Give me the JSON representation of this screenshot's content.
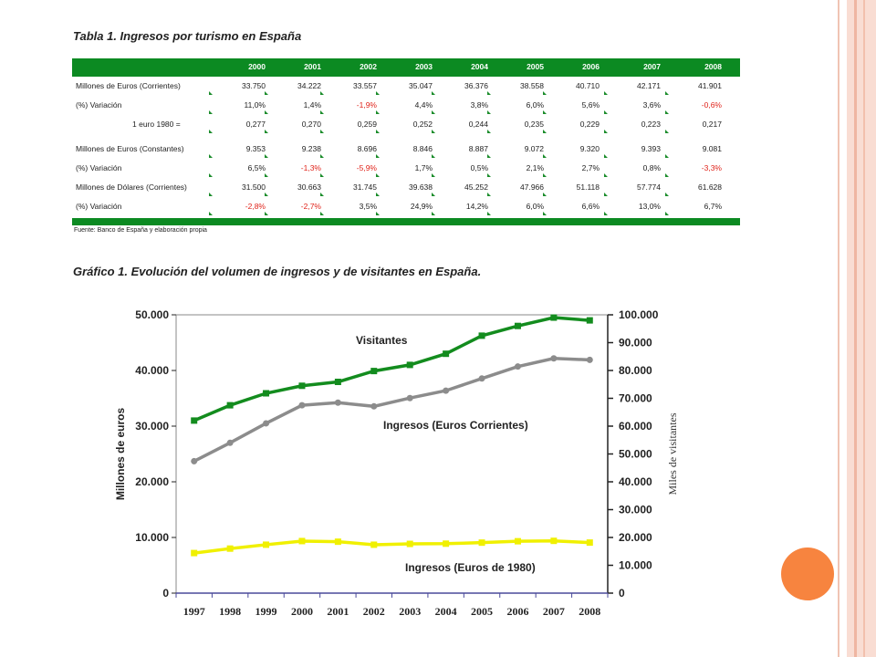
{
  "table": {
    "title": "Tabla 1. Ingresos por turismo en España",
    "years": [
      "2000",
      "2001",
      "2002",
      "2003",
      "2004",
      "2005",
      "2006",
      "2007",
      "2008"
    ],
    "rows": [
      {
        "label": "Millones de Euros (Corrientes)",
        "values": [
          "33.750",
          "34.222",
          "33.557",
          "35.047",
          "36.376",
          "38.558",
          "40.710",
          "42.171",
          "41.901"
        ],
        "neg": [
          false,
          false,
          false,
          false,
          false,
          false,
          false,
          false,
          false
        ]
      },
      {
        "label": "(%) Variación",
        "values": [
          "11,0%",
          "1,4%",
          "-1,9%",
          "4,4%",
          "3,8%",
          "6,0%",
          "5,6%",
          "3,6%",
          "-0,6%"
        ],
        "neg": [
          false,
          false,
          true,
          false,
          false,
          false,
          false,
          false,
          true
        ]
      },
      {
        "label": "1 euro 1980 =",
        "indent": true,
        "values": [
          "0,277",
          "0,270",
          "0,259",
          "0,252",
          "0,244",
          "0,235",
          "0,229",
          "0,223",
          "0,217"
        ],
        "neg": [
          false,
          false,
          false,
          false,
          false,
          false,
          false,
          false,
          false
        ]
      },
      {
        "gap": true
      },
      {
        "label": "Millones de Euros (Constantes)",
        "values": [
          "9.353",
          "9.238",
          "8.696",
          "8.846",
          "8.887",
          "9.072",
          "9.320",
          "9.393",
          "9.081"
        ],
        "neg": [
          false,
          false,
          false,
          false,
          false,
          false,
          false,
          false,
          false
        ]
      },
      {
        "label": "(%) Variación",
        "values": [
          "6,5%",
          "-1,3%",
          "-5,9%",
          "1,7%",
          "0,5%",
          "2,1%",
          "2,7%",
          "0,8%",
          "-3,3%"
        ],
        "neg": [
          false,
          true,
          true,
          false,
          false,
          false,
          false,
          false,
          true
        ]
      },
      {
        "label": "Millones de Dólares (Corrientes)",
        "values": [
          "31.500",
          "30.663",
          "31.745",
          "39.638",
          "45.252",
          "47.966",
          "51.118",
          "57.774",
          "61.628"
        ],
        "neg": [
          false,
          false,
          false,
          false,
          false,
          false,
          false,
          false,
          false
        ]
      },
      {
        "label": "(%) Variación",
        "values": [
          "-2,8%",
          "-2,7%",
          "3,5%",
          "24,9%",
          "14,2%",
          "6,0%",
          "6,6%",
          "13,0%",
          "6,7%"
        ],
        "neg": [
          true,
          true,
          false,
          false,
          false,
          false,
          false,
          false,
          false
        ]
      }
    ],
    "source": "Fuente: Banco de España y elaboración propia"
  },
  "chart_title": "Gráfico 1. Evolución del volumen de ingresos y de visitantes en España.",
  "chart_data": {
    "type": "line",
    "x": [
      "1997",
      "1998",
      "1999",
      "2000",
      "2001",
      "2002",
      "2003",
      "2004",
      "2005",
      "2006",
      "2007",
      "2008"
    ],
    "ylabel": "Millones de euros",
    "y2label": "Miles de visitantes",
    "ylim": [
      0,
      50000
    ],
    "y2lim": [
      0,
      100000
    ],
    "yticks": [
      "0",
      "10.000",
      "20.000",
      "30.000",
      "40.000",
      "50.000"
    ],
    "y2ticks": [
      "0",
      "10.000",
      "20.000",
      "30.000",
      "40.000",
      "50.000",
      "60.000",
      "70.000",
      "80.000",
      "90.000",
      "100.000"
    ],
    "grid": false,
    "series": [
      {
        "name": "Visitantes",
        "axis": "right",
        "color": "#138c1e",
        "marker": "square",
        "values": [
          62000,
          67500,
          71800,
          74500,
          75900,
          79800,
          82000,
          86000,
          92500,
          96000,
          99000,
          98000
        ]
      },
      {
        "name": "Ingresos (Euros Corrientes)",
        "axis": "left",
        "color": "#8c8c8c",
        "marker": "circle",
        "values": [
          23700,
          27000,
          30500,
          33750,
          34222,
          33557,
          35047,
          36376,
          38558,
          40710,
          42171,
          41901
        ]
      },
      {
        "name": "Ingresos (Euros de 1980)",
        "axis": "left",
        "color": "#f0f000",
        "marker": "square",
        "values": [
          7200,
          8000,
          8700,
          9353,
          9238,
          8696,
          8846,
          8887,
          9072,
          9320,
          9393,
          9081
        ]
      }
    ]
  }
}
